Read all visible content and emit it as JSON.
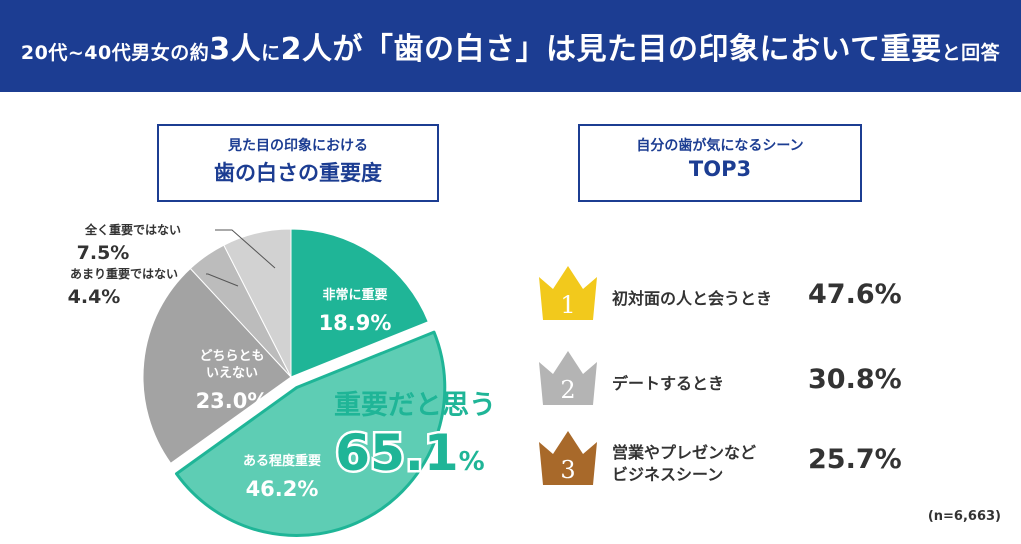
{
  "header": {
    "title_parts": [
      "20代~40代男女の約",
      "3人",
      "に",
      "2人",
      "が「",
      "歯の白さ",
      "」は見た目の印象において",
      "重要",
      "と回答"
    ]
  },
  "left_box": {
    "line1": "見た目の印象における",
    "line2": "歯の白さの重要度"
  },
  "right_box": {
    "line1": "自分の歯が気になるシーン",
    "line2": "TOP3"
  },
  "chart_data": [
    {
      "type": "pie",
      "slices": [
        {
          "label": "非常に重要",
          "value": 18.9,
          "color": "#1fb597"
        },
        {
          "label": "ある程度重要",
          "value": 46.2,
          "color": "#5ecdb4"
        },
        {
          "label": "どちらとも いえない",
          "value": 23.0,
          "color": "#a3a3a3"
        },
        {
          "label": "あまり重要ではない",
          "value": 4.4,
          "color": "#bcbcbc"
        },
        {
          "label": "全く重要ではない",
          "value": 7.5,
          "color": "#d2d2d2"
        }
      ],
      "value_suffix": "%",
      "callout": {
        "label": "重要だと思う",
        "value": "65.1",
        "suffix": "%",
        "color": "#1fb597"
      }
    },
    {
      "type": "table",
      "title": "自分の歯が気になるシーン TOP3",
      "rows": [
        {
          "rank": "1",
          "label": "初対面の人と会うとき",
          "value": "47.6%",
          "crown_color": "#f2c91c"
        },
        {
          "rank": "2",
          "label": "デートするとき",
          "value": "30.8%",
          "crown_color": "#b4b4b4"
        },
        {
          "rank": "3",
          "label": "営業やプレゼンなど ビジネスシーン",
          "value": "25.7%",
          "crown_color": "#a8692a"
        }
      ]
    }
  ],
  "footnote": "(n=6,663)"
}
